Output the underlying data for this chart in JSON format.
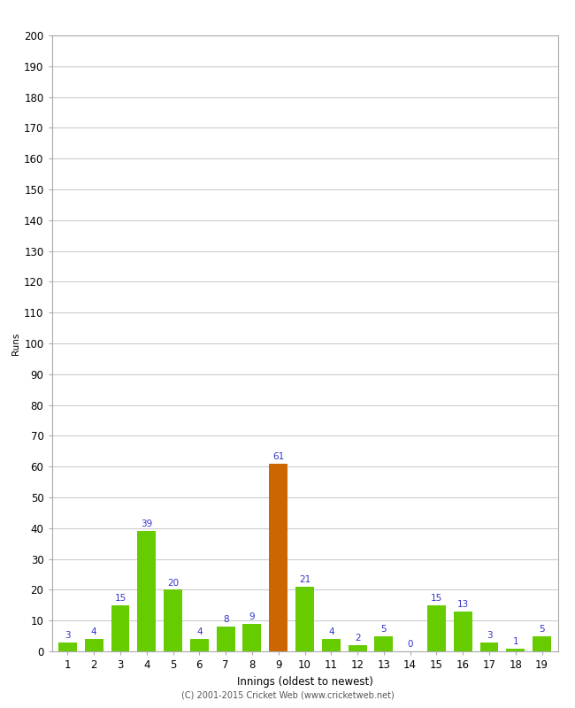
{
  "xlabel": "Innings (oldest to newest)",
  "ylabel": "Runs",
  "categories": [
    1,
    2,
    3,
    4,
    5,
    6,
    7,
    8,
    9,
    10,
    11,
    12,
    13,
    14,
    15,
    16,
    17,
    18,
    19
  ],
  "values": [
    3,
    4,
    15,
    39,
    20,
    4,
    8,
    9,
    61,
    21,
    4,
    2,
    5,
    0,
    15,
    13,
    3,
    1,
    5
  ],
  "bar_colors": [
    "#66cc00",
    "#66cc00",
    "#66cc00",
    "#66cc00",
    "#66cc00",
    "#66cc00",
    "#66cc00",
    "#66cc00",
    "#cc6600",
    "#66cc00",
    "#66cc00",
    "#66cc00",
    "#66cc00",
    "#66cc00",
    "#66cc00",
    "#66cc00",
    "#66cc00",
    "#66cc00",
    "#66cc00"
  ],
  "ylim": [
    0,
    200
  ],
  "yticks": [
    0,
    10,
    20,
    30,
    40,
    50,
    60,
    70,
    80,
    90,
    100,
    110,
    120,
    130,
    140,
    150,
    160,
    170,
    180,
    190,
    200
  ],
  "background_color": "#ffffff",
  "grid_color": "#cccccc",
  "label_color": "#3333cc",
  "label_fontsize": 7.5,
  "axis_fontsize": 8.5,
  "ylabel_fontsize": 7.5,
  "footer": "(C) 2001-2015 Cricket Web (www.cricketweb.net)",
  "border_color": "#aaaaaa"
}
